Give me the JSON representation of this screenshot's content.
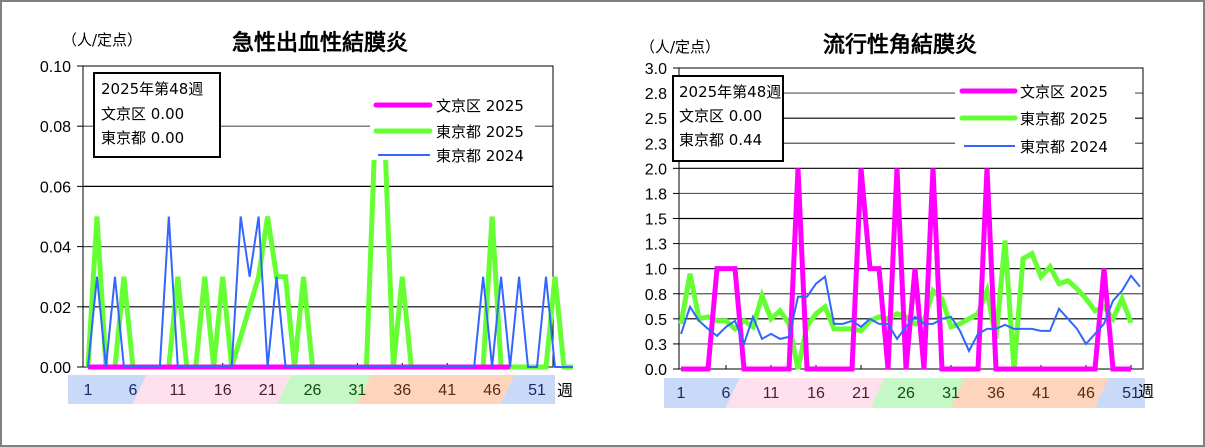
{
  "chart_data": [
    {
      "type": "line",
      "title": "急性出血性結膜炎",
      "ylabel": "（人/定点）",
      "xlabel": "週",
      "ylim": [
        0,
        0.1
      ],
      "yticks": [
        "0.00",
        "0.02",
        "0.04",
        "0.06",
        "0.08",
        "0.10"
      ],
      "xticks": [
        "1",
        "6",
        "11",
        "16",
        "21",
        "26",
        "31",
        "36",
        "41",
        "46",
        "51"
      ],
      "grid": true,
      "legend_position": "upper right",
      "info_box": {
        "line1": "2025年第48週",
        "line2": "文京区  0.00",
        "line3": "東京都  0.00"
      },
      "series": [
        {
          "name": "文京区 2025",
          "color": "#ff00ff",
          "values": [
            0,
            0,
            0,
            0,
            0,
            0,
            0,
            0,
            0,
            0,
            0,
            0,
            0,
            0,
            0,
            0,
            0,
            0,
            0,
            0,
            0,
            0,
            0,
            0,
            0,
            0,
            0,
            0,
            0,
            0,
            0,
            0,
            0,
            0,
            0,
            0,
            0,
            0,
            0,
            0,
            0,
            0,
            0,
            0,
            0,
            0,
            0,
            0
          ]
        },
        {
          "name": "東京都 2025",
          "color": "#66ff33",
          "values": [
            0,
            0.05,
            0,
            0,
            0.03,
            0,
            0,
            0,
            0,
            0,
            0.03,
            0,
            0,
            0.03,
            0,
            0.03,
            0,
            0.01,
            0.02,
            0.03,
            0.05,
            0.03,
            0.03,
            0,
            0.03,
            0,
            0,
            0,
            0,
            0,
            0,
            0,
            0.08,
            0.08,
            0,
            0.03,
            0,
            0,
            0,
            0,
            0,
            0,
            0,
            0,
            0,
            0.05,
            0,
            0,
            0,
            0,
            0,
            0,
            0.03,
            0,
            0
          ]
        },
        {
          "name": "東京都 2024",
          "color": "#3366ff",
          "values": [
            0,
            0.03,
            0,
            0.03,
            0,
            0,
            0,
            0,
            0,
            0.05,
            0,
            0,
            0,
            0,
            0,
            0,
            0,
            0.05,
            0.03,
            0.05,
            0,
            0.03,
            0,
            0,
            0,
            0,
            0,
            0,
            0,
            0,
            0,
            0,
            0,
            0,
            0,
            0,
            0,
            0,
            0,
            0,
            0,
            0,
            0,
            0,
            0.03,
            0,
            0.03,
            0,
            0.03,
            0,
            0,
            0.03,
            0,
            0,
            0
          ]
        }
      ]
    },
    {
      "type": "line",
      "title": "流行性角結膜炎",
      "ylabel": "（人/定点）",
      "xlabel": "週",
      "ylim": [
        0,
        3.0
      ],
      "yticks": [
        "0.0",
        "0.3",
        "0.5",
        "0.8",
        "1.0",
        "1.3",
        "1.5",
        "1.8",
        "2.0",
        "2.3",
        "2.5",
        "2.8",
        "3.0"
      ],
      "xticks": [
        "1",
        "6",
        "11",
        "16",
        "21",
        "26",
        "31",
        "36",
        "41",
        "46",
        "51"
      ],
      "grid": true,
      "legend_position": "upper right",
      "info_box": {
        "line1": "2025年第48週",
        "line2": "文京区  0.00",
        "line3": "東京都  0.44"
      },
      "series": [
        {
          "name": "文京区 2025",
          "color": "#ff00ff",
          "values": [
            0,
            0,
            0,
            0,
            1,
            1,
            1,
            0,
            0,
            0,
            0,
            0,
            0,
            2,
            0,
            0,
            0,
            0,
            0,
            0,
            2,
            1,
            1,
            0,
            2,
            0,
            1,
            0,
            2,
            0,
            0,
            0,
            0,
            0,
            2,
            0,
            0,
            0,
            0,
            0,
            0,
            0,
            0,
            0,
            0,
            0,
            0,
            1,
            0,
            0,
            0
          ]
        },
        {
          "name": "東京都 2025",
          "color": "#66ff33",
          "values": [
            0.45,
            0.95,
            0.5,
            0.52,
            0.48,
            0.48,
            0.4,
            0.48,
            0.42,
            0.73,
            0.5,
            0.58,
            0.45,
            0,
            0.43,
            0.55,
            0.62,
            0.4,
            0.4,
            0.4,
            0.38,
            0.48,
            0.52,
            0.5,
            0.55,
            0.52,
            0.45,
            0.48,
            0.78,
            0.7,
            0.42,
            0.45,
            0.5,
            0.55,
            0.78,
            0.3,
            1.28,
            0,
            1.1,
            1.15,
            0.92,
            1.02,
            0.85,
            0.88,
            0.8,
            0.7,
            0.58,
            0.62,
            0.5,
            0.7,
            0.46
          ]
        },
        {
          "name": "東京都 2024",
          "color": "#3366ff",
          "values": [
            0.35,
            0.62,
            0.48,
            0.4,
            0.33,
            0.42,
            0.48,
            0.25,
            0.52,
            0.3,
            0.35,
            0.3,
            0.32,
            0.72,
            0.72,
            0.85,
            0.92,
            0.45,
            0.45,
            0.48,
            0.42,
            0.5,
            0.45,
            0.45,
            0.3,
            0.42,
            0.52,
            0.45,
            0.45,
            0.5,
            0.52,
            0.38,
            0.18,
            0.35,
            0.4,
            0.4,
            0.44,
            0.4,
            0.4,
            0.4,
            0.38,
            0.38,
            0.6,
            0.5,
            0.4,
            0.25,
            0.35,
            0.45,
            0.68,
            0.78,
            0.93,
            0.82
          ]
        }
      ]
    }
  ],
  "charts": {
    "left": {
      "title": "急性出血性結膜炎",
      "unit": "（人/定点）",
      "info": [
        "2025年第48週",
        "文京区  0.00",
        "東京都  0.00"
      ],
      "yticks": [
        "0.10",
        "0.08",
        "0.06",
        "0.04",
        "0.02",
        "0.00"
      ]
    },
    "right": {
      "title": "流行性角結膜炎",
      "unit": "（人/定点）",
      "info": [
        "2025年第48週",
        "文京区  0.00",
        "東京都  0.44"
      ],
      "yticks": [
        "3.0",
        "2.8",
        "2.5",
        "2.3",
        "2.0",
        "1.8",
        "1.5",
        "1.3",
        "1.0",
        "0.8",
        "0.5",
        "0.3",
        "0.0"
      ]
    },
    "legend": [
      "文京区 2025",
      "東京都 2025",
      "東京都 2024"
    ],
    "week_label": "週",
    "xticks": [
      "1",
      "6",
      "11",
      "16",
      "21",
      "26",
      "31",
      "36",
      "41",
      "46",
      "51"
    ],
    "colors": {
      "bunkyo2025": "#ff00ff",
      "tokyo2025": "#66ff33",
      "tokyo2024": "#3366ff"
    },
    "bands": {
      "winter": "#c9d9f8",
      "spring": "#fde0ec",
      "summer": "#c6f7c6",
      "autumn": "#fdd5bd"
    }
  }
}
